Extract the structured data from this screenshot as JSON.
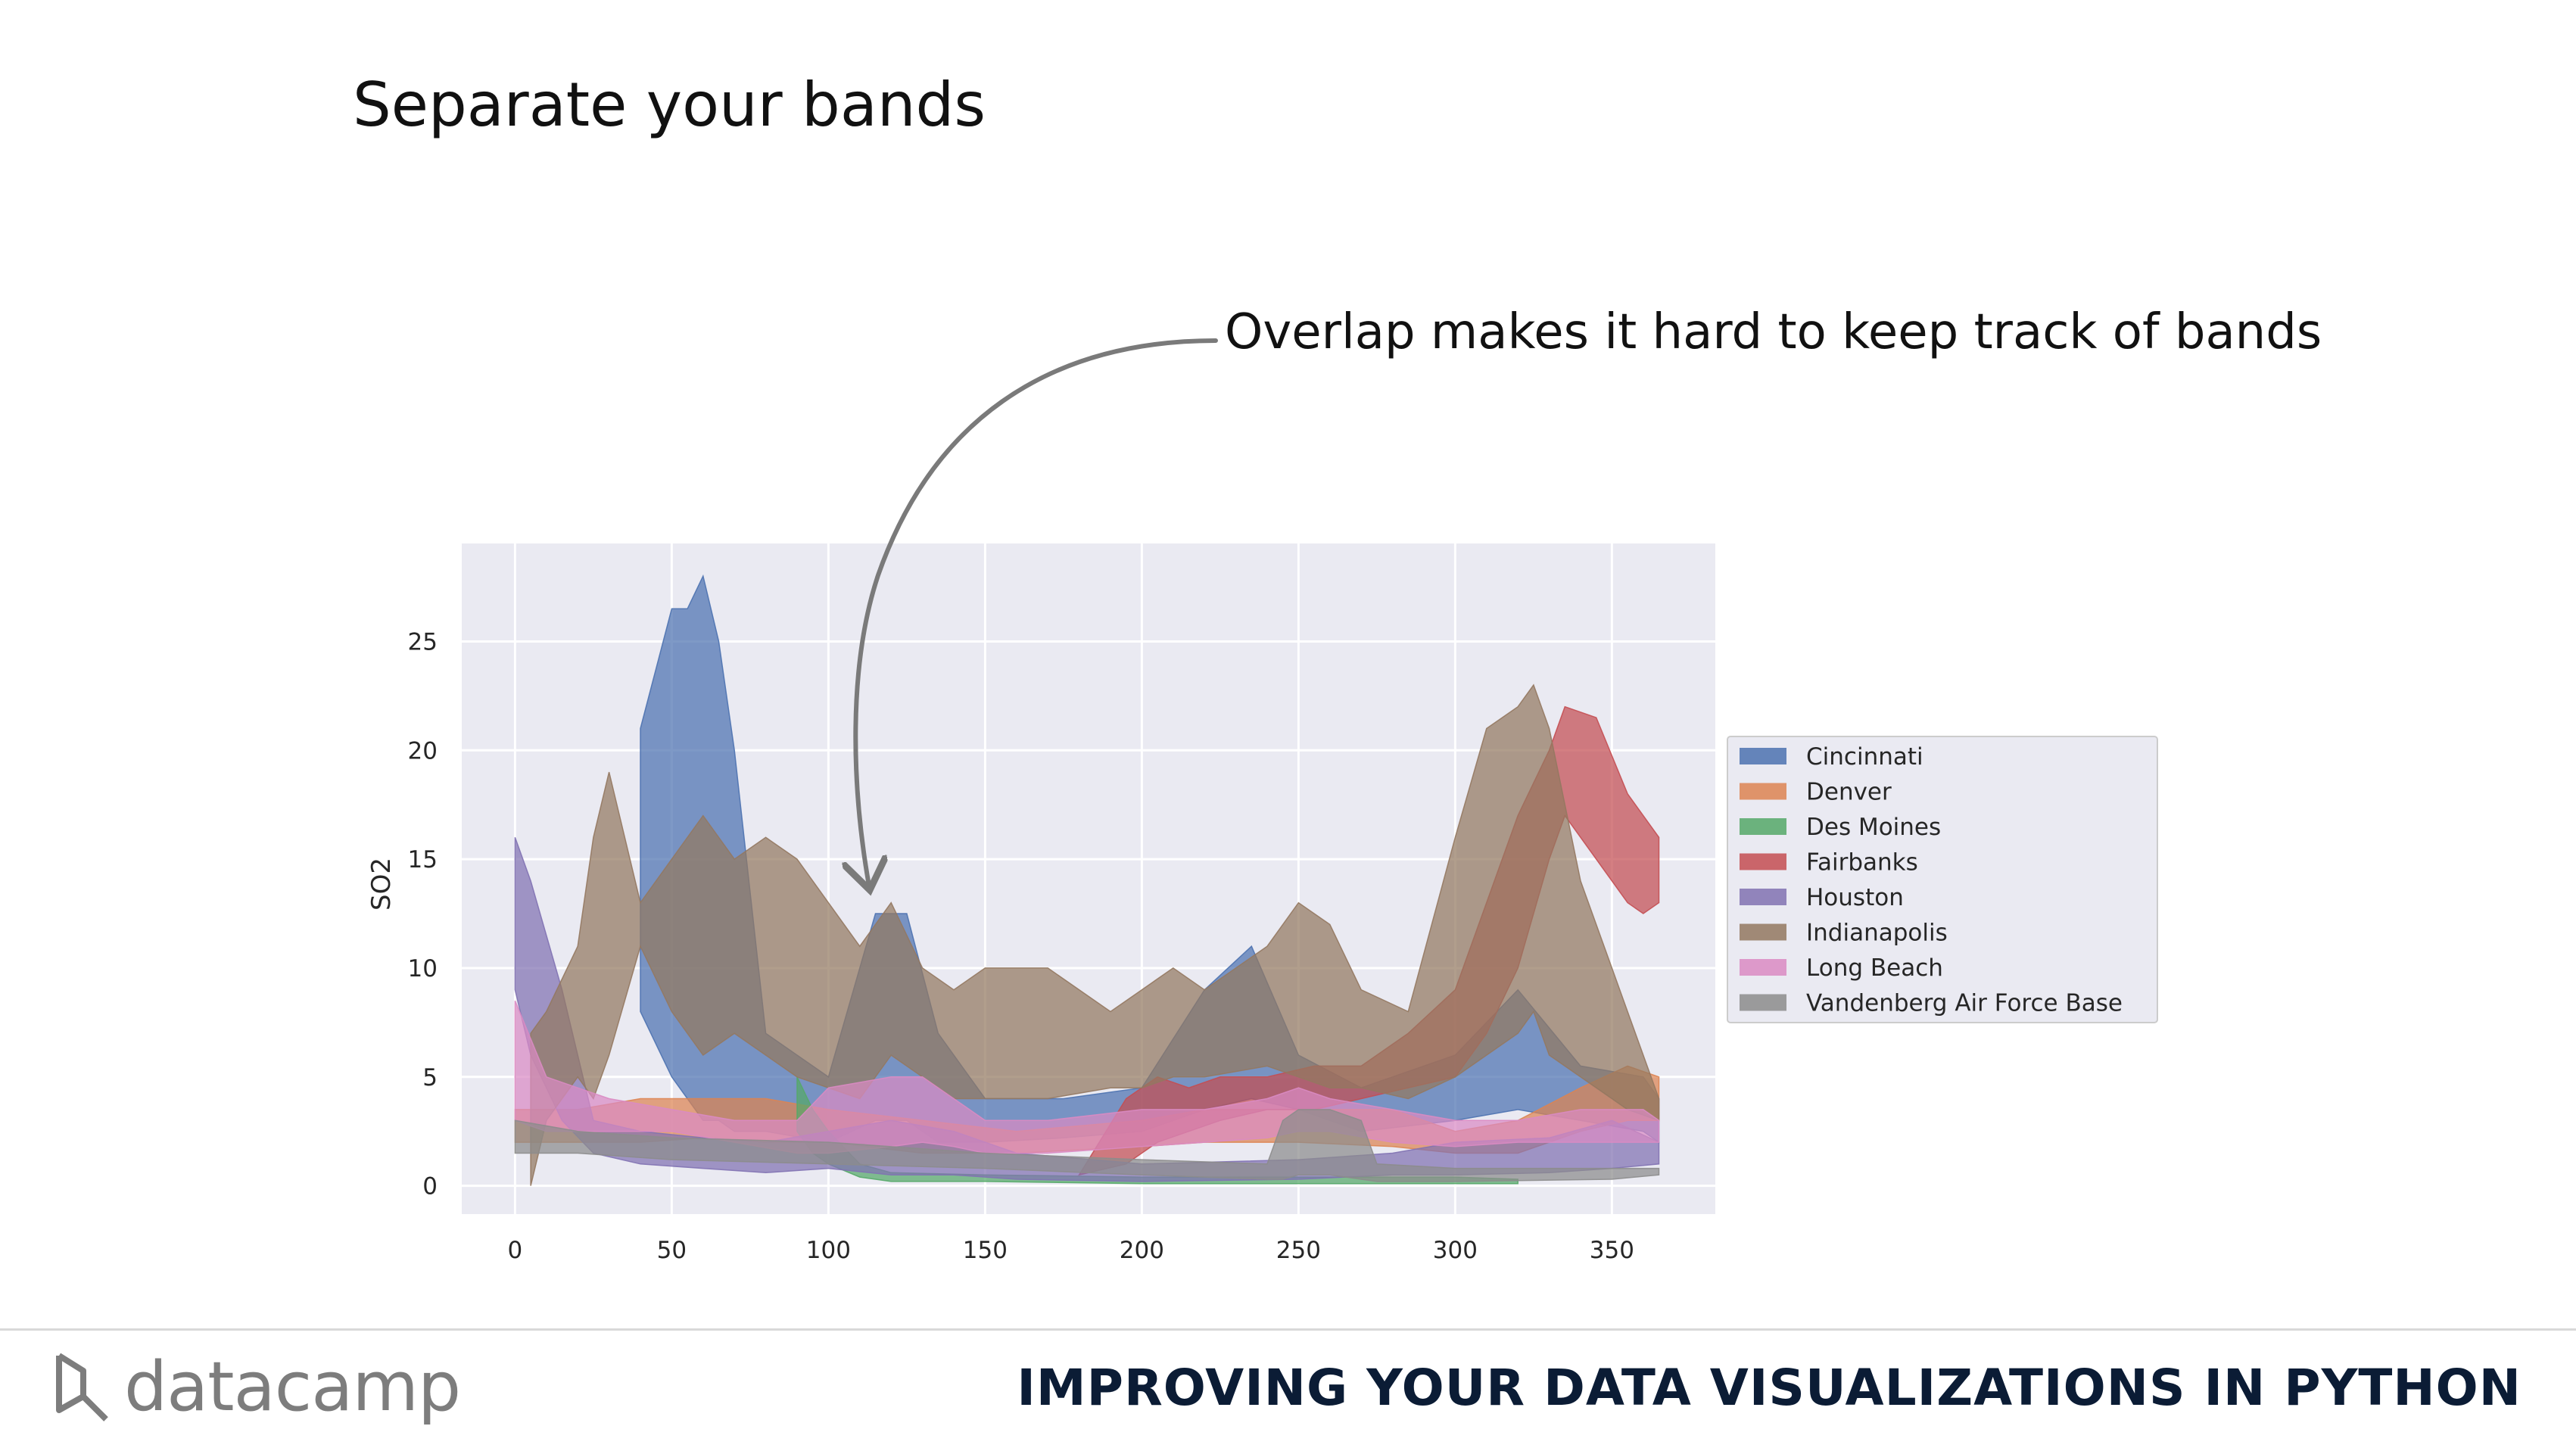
{
  "slide": {
    "title": "Separate your bands",
    "annotation": "Overlap makes it hard to keep track of bands"
  },
  "footer": {
    "logo_text": "datacamp",
    "course_title": "IMPROVING YOUR DATA VISUALIZATIONS IN PYTHON"
  },
  "chart_data": {
    "type": "area",
    "ylabel": "SO2",
    "xlabel": "",
    "xlim": [
      -17,
      383
    ],
    "ylim": [
      -1.3,
      29.5
    ],
    "xticks": [
      0,
      50,
      100,
      150,
      200,
      250,
      300,
      350
    ],
    "yticks": [
      0,
      5,
      10,
      15,
      20,
      25
    ],
    "grid": true,
    "background": "#EAEAF2",
    "legend_position": "right",
    "series": [
      {
        "name": "Cincinnati",
        "color": "#4C72B0",
        "x": [
          40,
          50,
          55,
          60,
          65,
          70,
          80,
          100,
          115,
          125,
          135,
          150,
          175,
          200,
          220,
          235,
          250,
          270,
          300,
          320,
          340,
          360,
          365
        ],
        "upper": [
          21,
          26.5,
          26.5,
          28,
          25,
          20,
          7,
          5,
          12.5,
          12.5,
          7,
          4,
          4,
          4.5,
          9,
          11,
          6,
          4.5,
          6,
          9,
          5.5,
          5,
          4
        ],
        "lower": [
          8,
          5,
          4,
          3,
          3,
          2.5,
          2.5,
          2,
          3,
          3,
          2,
          2,
          2.2,
          2.5,
          3.5,
          4,
          3.5,
          2.5,
          3,
          3.5,
          3,
          2.5,
          2
        ]
      },
      {
        "name": "Denver",
        "color": "#DD8452",
        "x": [
          0,
          20,
          40,
          60,
          80,
          100,
          130,
          160,
          200,
          220,
          250,
          280,
          300,
          320,
          340,
          355,
          365
        ],
        "upper": [
          3.5,
          3.5,
          4,
          4,
          4,
          3.5,
          3,
          2.5,
          3,
          3.5,
          3.5,
          3.5,
          2.5,
          3,
          4.5,
          5.5,
          5
        ],
        "lower": [
          2,
          2,
          2,
          2.2,
          2,
          2,
          1.5,
          1.5,
          1.8,
          2,
          2,
          1.8,
          1.5,
          1.5,
          2.5,
          3,
          3
        ]
      },
      {
        "name": "Des Moines",
        "color": "#55A868",
        "x": [
          90,
          95,
          100,
          110,
          120,
          150,
          200,
          250,
          300,
          320
        ],
        "upper": [
          5,
          3.5,
          2.5,
          1,
          0.6,
          0.5,
          0.4,
          0.4,
          0.4,
          0.3
        ],
        "lower": [
          2.5,
          1.5,
          1,
          0.4,
          0.2,
          0.2,
          0.1,
          0.1,
          0.1,
          0.1
        ]
      },
      {
        "name": "Fairbanks",
        "color": "#C44E52",
        "x": [
          180,
          195,
          205,
          215,
          225,
          240,
          255,
          270,
          285,
          300,
          310,
          320,
          330,
          335,
          345,
          355,
          360,
          365
        ],
        "upper": [
          0.5,
          4,
          5,
          4.5,
          5,
          5,
          5.5,
          5.5,
          7,
          9,
          13,
          17,
          20,
          22,
          21.5,
          18,
          17,
          16
        ],
        "lower": [
          0.5,
          1,
          2,
          2.5,
          3,
          3.5,
          3.5,
          4,
          4.5,
          5,
          7,
          10,
          15,
          17,
          15,
          13,
          12.5,
          13
        ]
      },
      {
        "name": "Houston",
        "color": "#8172B2",
        "x": [
          0,
          5,
          15,
          25,
          40,
          60,
          80,
          100,
          120,
          140,
          160,
          200,
          250,
          280,
          300,
          330,
          350,
          365
        ],
        "upper": [
          16,
          14,
          9,
          3,
          2.5,
          2.2,
          2,
          2.5,
          3,
          2.5,
          1.5,
          1,
          1.2,
          1.5,
          2,
          2.2,
          3,
          2
        ],
        "lower": [
          9,
          6,
          3,
          1.5,
          1,
          0.8,
          0.6,
          0.8,
          0.5,
          0.5,
          0.3,
          0.2,
          0.3,
          0.5,
          0.5,
          0.6,
          0.8,
          1
        ]
      },
      {
        "name": "Indianapolis",
        "color": "#937860",
        "x": [
          5,
          10,
          20,
          25,
          30,
          40,
          50,
          60,
          70,
          80,
          90,
          110,
          120,
          130,
          140,
          150,
          170,
          190,
          200,
          210,
          220,
          240,
          250,
          260,
          270,
          285,
          300,
          310,
          320,
          325,
          330,
          340,
          350,
          355,
          365
        ],
        "upper": [
          7,
          8,
          11,
          16,
          19,
          13,
          15,
          17,
          15,
          16,
          15,
          11,
          13,
          10,
          9,
          10,
          10,
          8,
          9,
          10,
          9,
          11,
          13,
          12,
          9,
          8,
          16,
          21,
          22,
          23,
          21,
          14,
          10,
          8,
          4
        ],
        "lower": [
          0,
          3,
          5,
          4,
          6,
          11,
          8,
          6,
          7,
          6,
          5,
          4,
          6,
          5,
          4,
          4,
          4,
          4.5,
          4.5,
          5,
          5,
          5.5,
          5,
          4.5,
          4.5,
          4,
          5,
          6,
          7,
          8,
          6,
          5,
          4,
          3.5,
          3
        ]
      },
      {
        "name": "Long Beach",
        "color": "#DA8BC3",
        "x": [
          0,
          10,
          20,
          30,
          50,
          70,
          90,
          100,
          120,
          130,
          140,
          150,
          170,
          200,
          220,
          240,
          250,
          260,
          280,
          300,
          320,
          340,
          360,
          365
        ],
        "upper": [
          8.5,
          5,
          4.5,
          4,
          3.5,
          3,
          3,
          4.5,
          5,
          5,
          4,
          3,
          3,
          3.5,
          3.5,
          4,
          4.5,
          4,
          3.5,
          3,
          3,
          3.5,
          3.5,
          3
        ],
        "lower": [
          3,
          2.5,
          2.5,
          2.5,
          2.5,
          2,
          1.5,
          1.5,
          1.8,
          2,
          1.8,
          1.5,
          1.5,
          1.8,
          2,
          2.2,
          2.5,
          2.5,
          2,
          1.8,
          2,
          2,
          2,
          2
        ]
      },
      {
        "name": "Vandenberg Air Force Base",
        "color": "#8C8C8C",
        "x": [
          0,
          20,
          50,
          100,
          150,
          200,
          240,
          245,
          250,
          260,
          270,
          275,
          300,
          350,
          365
        ],
        "upper": [
          3,
          2.5,
          2.2,
          2,
          1.5,
          1.2,
          1,
          3,
          3.5,
          3.5,
          3,
          1,
          0.8,
          0.8,
          0.8
        ],
        "lower": [
          1.5,
          1.5,
          1.2,
          1,
          0.8,
          0.5,
          0.3,
          0.3,
          0.5,
          0.5,
          0.3,
          0.2,
          0.2,
          0.3,
          0.5
        ]
      }
    ]
  }
}
